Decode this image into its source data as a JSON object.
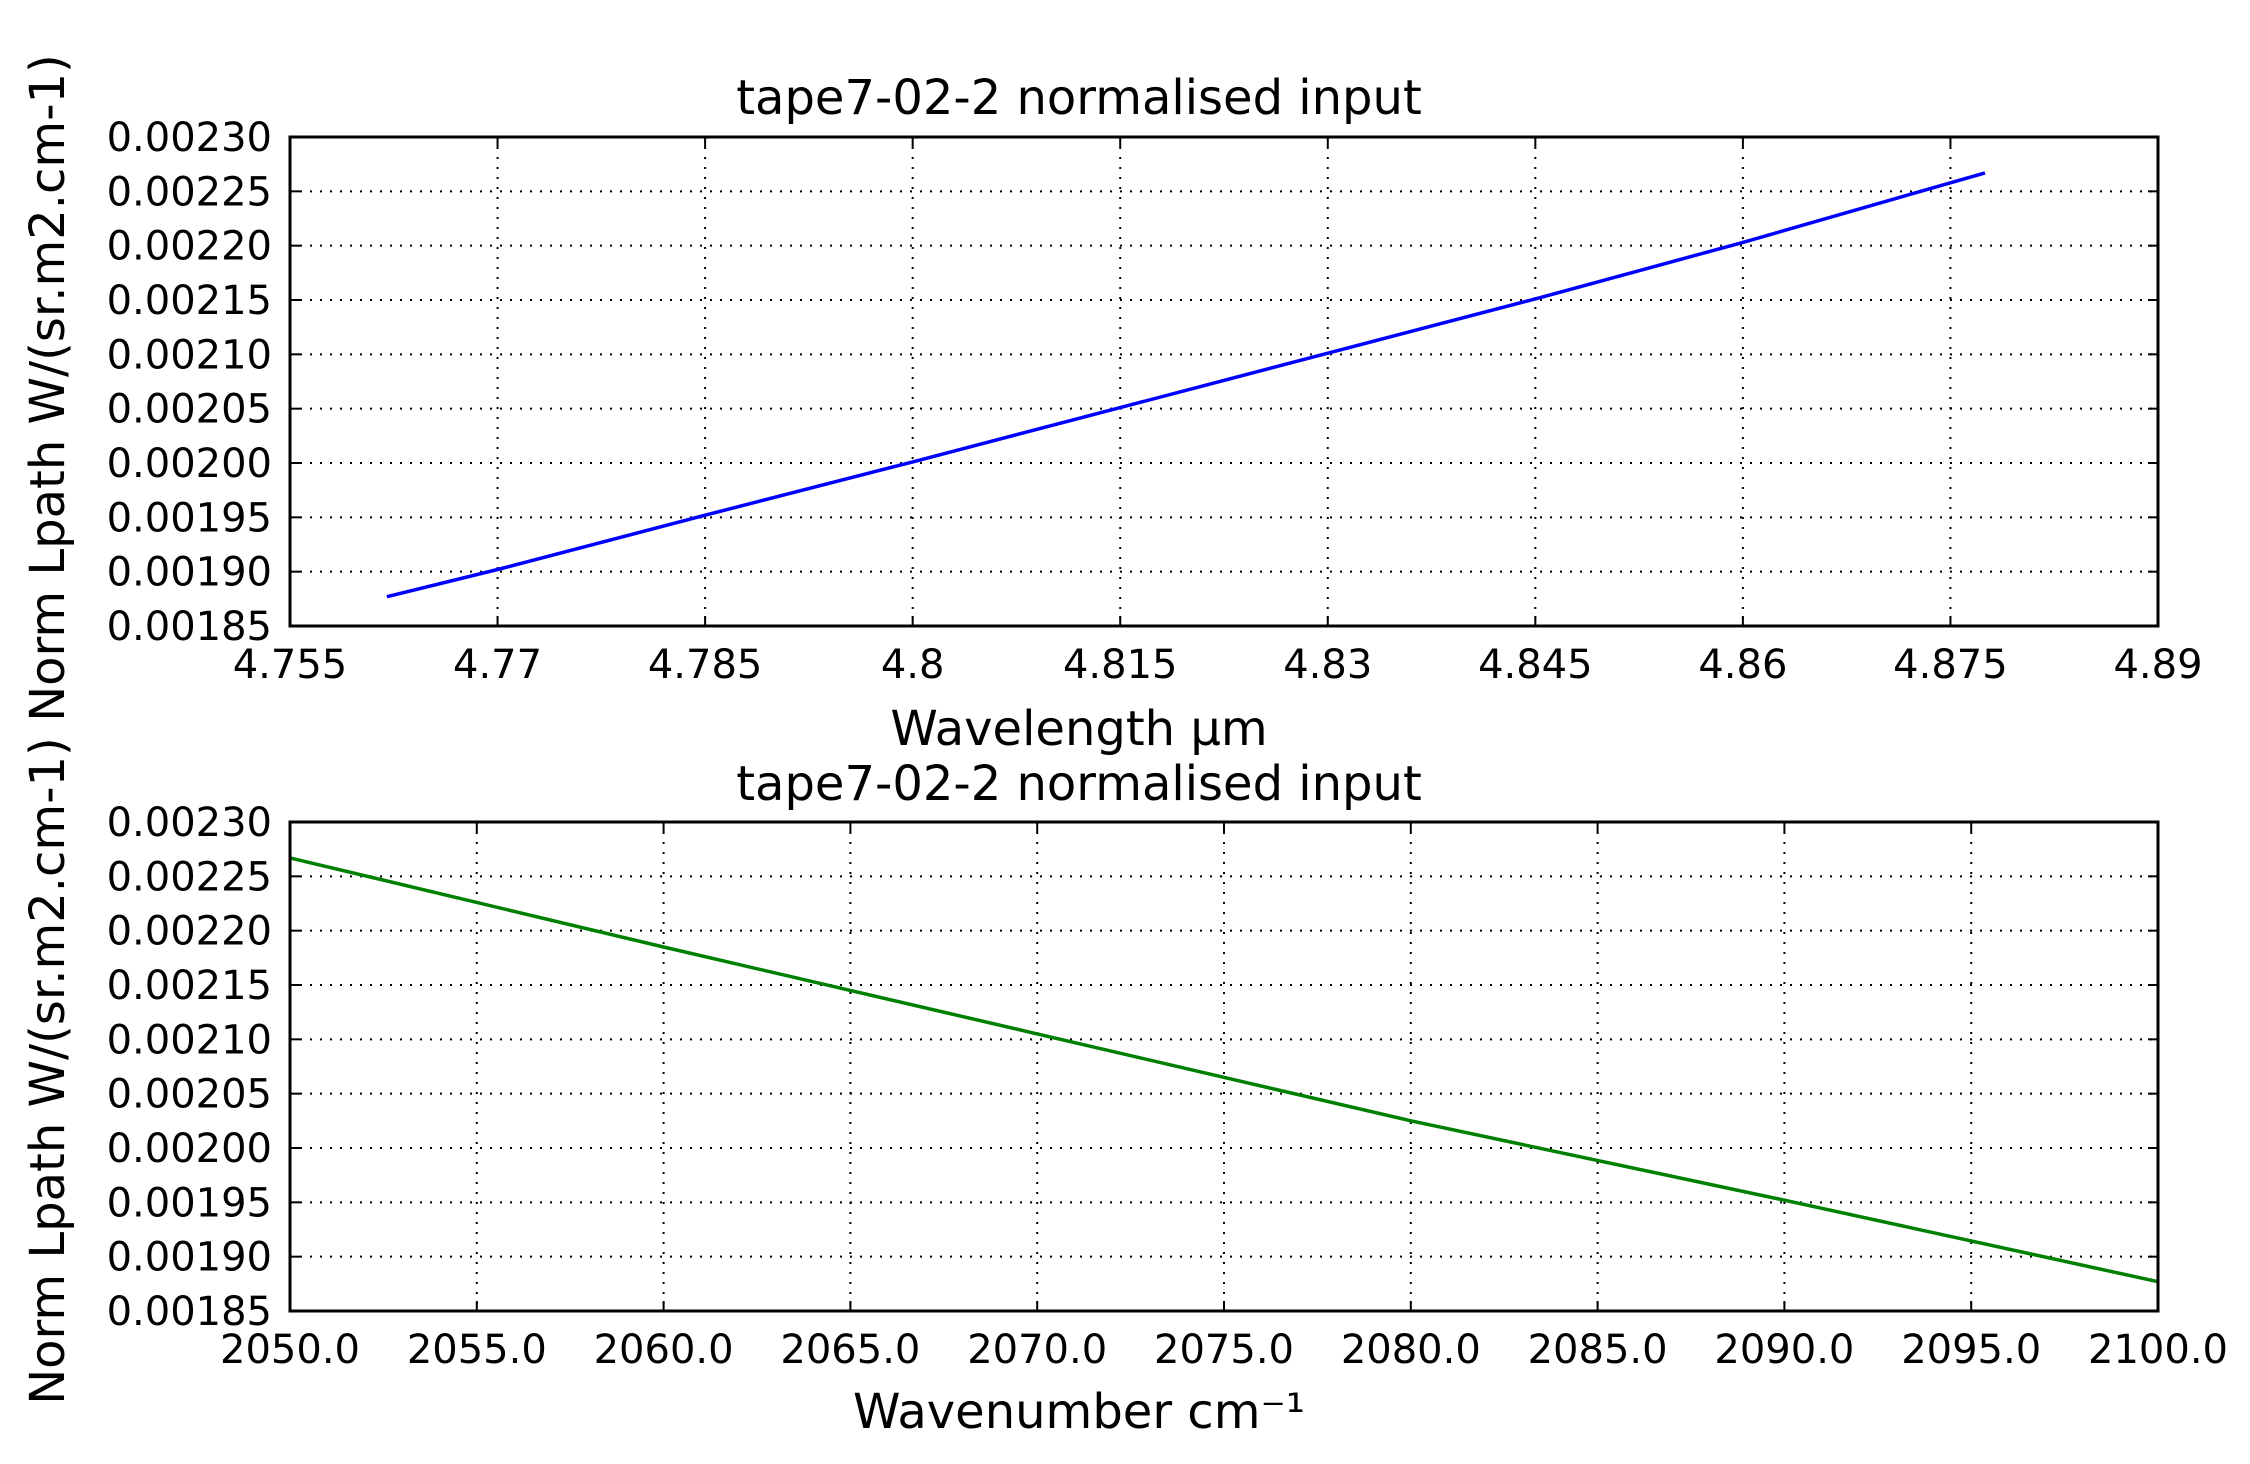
{
  "figure": {
    "background": "#ffffff"
  },
  "chart_data": [
    {
      "type": "line",
      "title": "tape7-02-2 normalised input",
      "xlabel": "Wavelength μm",
      "ylabel": "Norm Lpath W/(sr.m2.cm-1)",
      "xlim": [
        4.755,
        4.89
      ],
      "ylim": [
        0.00185,
        0.0023
      ],
      "x_ticks": [
        "4.755",
        "4.77",
        "4.785",
        "4.8",
        "4.815",
        "4.83",
        "4.845",
        "4.86",
        "4.875",
        "4.89"
      ],
      "y_ticks": [
        "0.00185",
        "0.00190",
        "0.00195",
        "0.00200",
        "0.00205",
        "0.00210",
        "0.00215",
        "0.00220",
        "0.00225",
        "0.00230"
      ],
      "grid": true,
      "series": [
        {
          "color": "#0000ff",
          "x": [
            4.762,
            4.77,
            4.785,
            4.8,
            4.815,
            4.83,
            4.845,
            4.86,
            4.8775
          ],
          "y": [
            0.001877,
            0.001902,
            0.001952,
            0.002001,
            0.002051,
            0.002101,
            0.002151,
            0.002203,
            0.002267
          ]
        }
      ]
    },
    {
      "type": "line",
      "title": "tape7-02-2 normalised input",
      "xlabel": "Wavenumber cm⁻¹",
      "ylabel": "Norm Lpath W/(sr.m2.cm-1)",
      "xlim": [
        2050,
        2100
      ],
      "ylim": [
        0.00185,
        0.0023
      ],
      "x_ticks": [
        "2050.0",
        "2055.0",
        "2060.0",
        "2065.0",
        "2070.0",
        "2075.0",
        "2080.0",
        "2085.0",
        "2090.0",
        "2095.0",
        "2100.0"
      ],
      "y_ticks": [
        "0.00185",
        "0.00190",
        "0.00195",
        "0.00200",
        "0.00205",
        "0.00210",
        "0.00215",
        "0.00220",
        "0.00225",
        "0.00230"
      ],
      "grid": true,
      "series": [
        {
          "color": "#008000",
          "x": [
            2050,
            2060,
            2070,
            2080,
            2090,
            2100
          ],
          "y": [
            0.002267,
            0.002185,
            0.002105,
            0.002025,
            0.001952,
            0.001877
          ]
        }
      ]
    }
  ]
}
